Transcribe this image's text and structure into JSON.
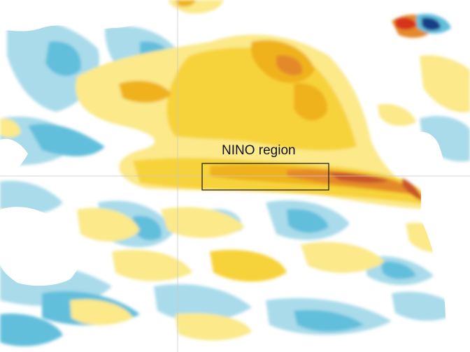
{
  "map": {
    "region_label": "NINO region",
    "colors": {
      "ocean_neutral": "#ffffff",
      "land": "#ffffff",
      "cold_light": "#a9dbea",
      "cold_mid": "#62bfdc",
      "cold_deep": "#2f9bcf",
      "warm_light": "#fbe98a",
      "warm_mid": "#f7d33a",
      "warm_strong": "#efb21f",
      "warm_hot": "#e4892a",
      "warm_extreme": "#c9552a",
      "hot_red": "#d7301f",
      "cold_navy": "#163c86",
      "box_stroke": "#222222",
      "graticule": "#c9c9c9"
    }
  }
}
